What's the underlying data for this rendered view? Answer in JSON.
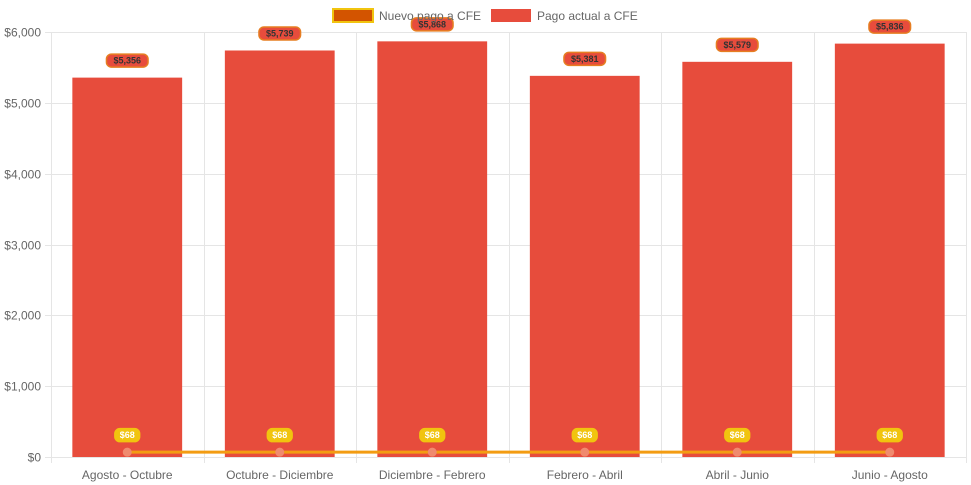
{
  "chart_data": {
    "type": "bar",
    "categories": [
      "Agosto - Octubre",
      "Octubre - Diciembre",
      "Diciembre - Febrero",
      "Febrero - Abril",
      "Abril - Junio",
      "Junio - Agosto"
    ],
    "series": [
      {
        "name": "Nuevo pago a CFE",
        "type": "line",
        "values": [
          68,
          68,
          68,
          68,
          68,
          68
        ],
        "data_labels": [
          "$68",
          "$68",
          "$68",
          "$68",
          "$68",
          "$68"
        ],
        "color": "#f39c12",
        "legend_fill": "#d35400",
        "label_bg": "#f1c40f",
        "label_text": "#ffffff"
      },
      {
        "name": "Pago actual a CFE",
        "type": "bar",
        "values": [
          5356,
          5739,
          5868,
          5381,
          5579,
          5836
        ],
        "data_labels": [
          "$5,356",
          "$5,739",
          "$5,868",
          "$5,381",
          "$5,579",
          "$5,836"
        ],
        "color": "#e74c3c",
        "label_bg": "#e74c3c",
        "label_border": "#e67e22",
        "label_text": "#333333"
      }
    ],
    "y_ticks": [
      "$0",
      "$1,000",
      "$2,000",
      "$3,000",
      "$4,000",
      "$5,000",
      "$6,000"
    ],
    "ylim": [
      0,
      6000
    ],
    "title": "",
    "xlabel": "",
    "ylabel": "",
    "grid": true,
    "legend": "top-center"
  }
}
